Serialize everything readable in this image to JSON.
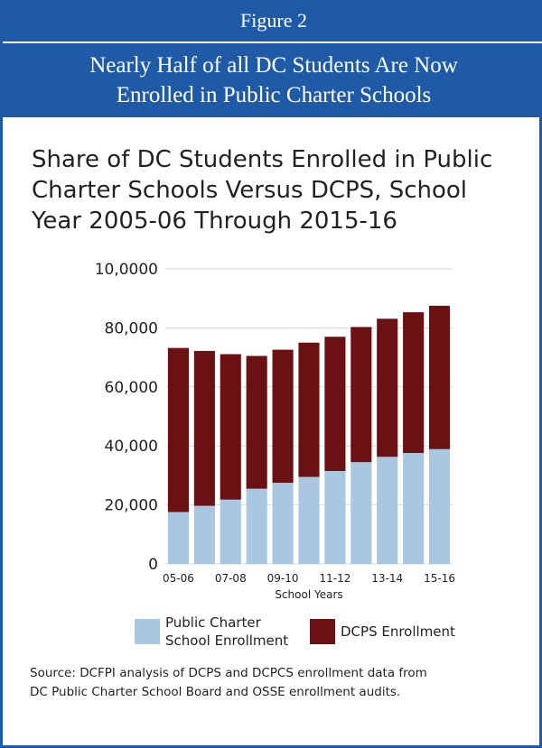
{
  "header": {
    "figure_label": "Figure 2",
    "title_line1": "Nearly Half of all DC Students Are Now",
    "title_line2": "Enrolled in Public Charter Schools"
  },
  "chart_title": {
    "line1": "Share of DC Students Enrolled in Public",
    "line2": "Charter Schools Versus DCPS, School",
    "line3": "Year 2005-06 Through 2015-16"
  },
  "legend": {
    "charter_line1": "Public Charter",
    "charter_line2": "School Enrollment",
    "dcps": "DCPS Enrollment"
  },
  "source": {
    "line1": "Source: DCFPI analysis of DCPS and DCPCS enrollment data from",
    "line2": "DC Public Charter School Board and OSSE enrollment audits."
  },
  "colors": {
    "header_blue": "#1f5aa6",
    "charter": "#a9c7e0",
    "dcps": "#6b1013"
  },
  "chart_data": {
    "type": "bar",
    "stacked": true,
    "categories": [
      "05-06",
      "06-07",
      "07-08",
      "08-09",
      "09-10",
      "10-11",
      "11-12",
      "12-13",
      "13-14",
      "14-15",
      "15-16"
    ],
    "x_tick_labels": [
      "05-06",
      "",
      "07-08",
      "",
      "09-10",
      "",
      "11-12",
      "",
      "13-14",
      "",
      "15-16"
    ],
    "series": [
      {
        "name": "Public Charter School Enrollment",
        "values": [
          17600,
          19700,
          21800,
          25500,
          27500,
          29500,
          31500,
          34500,
          36300,
          37600,
          38900
        ]
      },
      {
        "name": "DCPS Enrollment",
        "values": [
          55600,
          52500,
          49300,
          45000,
          45100,
          45500,
          45500,
          45800,
          46800,
          47700,
          48600
        ]
      }
    ],
    "xlabel": "School Years",
    "ylabel": "",
    "ylim": [
      0,
      100000
    ],
    "yticks": [
      0,
      20000,
      40000,
      60000,
      80000,
      100000
    ],
    "ytick_labels": [
      "0",
      "20,000",
      "40,000",
      "60,000",
      "80,000",
      "10,0000"
    ],
    "grid": "horizontal"
  }
}
